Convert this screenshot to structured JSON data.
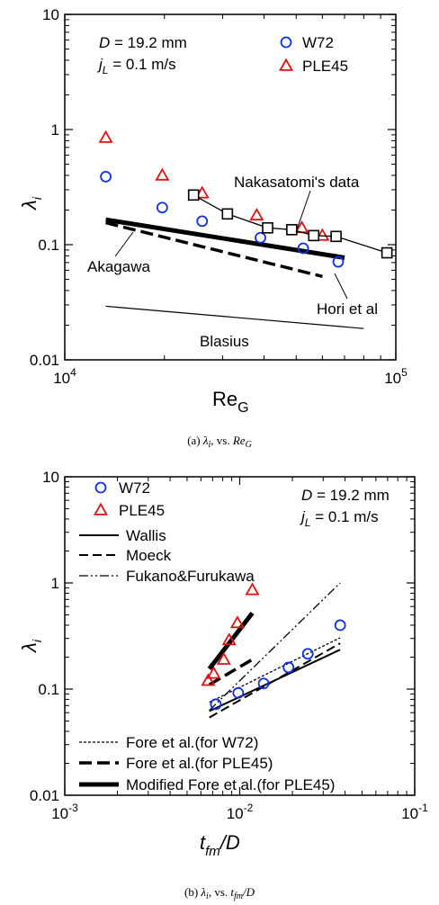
{
  "chart_data": [
    {
      "type": "scatter",
      "caption": {
        "prefix": "(a) ",
        "sym": "λ",
        "sub": "i",
        "mid": ", vs. ",
        "re": "Re",
        "resub": "G"
      },
      "xlabel": {
        "main": "Re",
        "sub": "G"
      },
      "ylabel": {
        "main": "λ",
        "sub": "i"
      },
      "x_scale": "log",
      "y_scale": "log",
      "xlim": [
        10000,
        100000
      ],
      "ylim": [
        0.01,
        10
      ],
      "x_ticks": [
        {
          "v": 10000,
          "base": "10",
          "exp": "4"
        },
        {
          "v": 100000,
          "base": "10",
          "exp": "5"
        }
      ],
      "y_ticks": [
        {
          "v": 0.01,
          "label": "0.01"
        },
        {
          "v": 0.1,
          "label": "0.1"
        },
        {
          "v": 1,
          "label": "1"
        },
        {
          "v": 10,
          "label": "10"
        }
      ],
      "conditions": [
        {
          "sym": "D",
          "text": " = 19.2 mm"
        },
        {
          "sym": "j",
          "sub": "L",
          "text": " = 0.1 m/s"
        }
      ],
      "legend": [
        {
          "label": "W72",
          "marker": "circle",
          "color": "#1030e8"
        },
        {
          "label": "PLE45",
          "marker": "triangle",
          "color": "#e01010"
        }
      ],
      "series": [
        {
          "name": "W72",
          "marker": "circle",
          "color": "#1030e8",
          "x": [
            13300,
            19700,
            26000,
            39000,
            52500,
            67000
          ],
          "y": [
            0.39,
            0.21,
            0.16,
            0.115,
            0.093,
            0.071
          ]
        },
        {
          "name": "PLE45",
          "marker": "triangle",
          "color": "#e01010",
          "x": [
            13300,
            19700,
            26000,
            38000,
            52000,
            60000
          ],
          "y": [
            0.85,
            0.4,
            0.28,
            0.18,
            0.14,
            0.12
          ]
        },
        {
          "marker": "square",
          "color": "#000000",
          "connect": true,
          "x": [
            24500,
            31000,
            41000,
            48500,
            56500,
            66000,
            94000
          ],
          "y": [
            0.27,
            0.185,
            0.14,
            0.135,
            0.12,
            0.118,
            0.085
          ]
        }
      ],
      "lines": [
        {
          "name": "Akagawa",
          "style": "thick",
          "x": [
            13300,
            70000
          ],
          "y": [
            0.165,
            0.077
          ]
        },
        {
          "name": "Hori et al",
          "style": "dashed-thick",
          "x": [
            13300,
            60000
          ],
          "y": [
            0.155,
            0.053
          ]
        },
        {
          "name": "Blasius",
          "style": "thin",
          "x": [
            13300,
            80000
          ],
          "y": [
            0.0292,
            0.0187
          ]
        }
      ],
      "annotations": [
        {
          "text": "Nakasatomi's data",
          "anchor": "nakasatomi"
        },
        {
          "text": "Akagawa",
          "anchor": "akagawa"
        },
        {
          "text": "Hori et al",
          "anchor": "hori"
        },
        {
          "text": "Blasius",
          "anchor": "blasius"
        }
      ]
    },
    {
      "type": "scatter",
      "caption": {
        "prefix": "(b) ",
        "sym": "λ",
        "sub": "i",
        "mid": ", vs. ",
        "t": "t",
        "tsub": "fm",
        "tail": "/D"
      },
      "xlabel": {
        "main": "t",
        "sub": "fm",
        "tail": "/D"
      },
      "ylabel": {
        "main": "λ",
        "sub": "i"
      },
      "x_scale": "log",
      "y_scale": "log",
      "xlim": [
        0.001,
        0.1
      ],
      "ylim": [
        0.01,
        10
      ],
      "x_ticks": [
        {
          "v": 0.001,
          "base": "10",
          "exp": "-3"
        },
        {
          "v": 0.01,
          "base": "10",
          "exp": "-2"
        },
        {
          "v": 0.1,
          "base": "10",
          "exp": "-1"
        }
      ],
      "y_ticks": [
        {
          "v": 0.01,
          "label": "0.01"
        },
        {
          "v": 0.1,
          "label": "0.1"
        },
        {
          "v": 1,
          "label": "1"
        },
        {
          "v": 10,
          "label": "10"
        }
      ],
      "conditions": [
        {
          "sym": "D",
          "text": " = 19.2 mm"
        },
        {
          "sym": "j",
          "sub": "L",
          "text": " = 0.1 m/s"
        }
      ],
      "legend": [
        {
          "label": "W72",
          "marker": "circle",
          "color": "#1030e8"
        },
        {
          "label": "PLE45",
          "marker": "triangle",
          "color": "#e01010"
        },
        {
          "label": "Wallis",
          "line": "solid"
        },
        {
          "label": "Moeck",
          "line": "dashed"
        },
        {
          "label": "Fukano&Furukawa",
          "line": "dashdotdot"
        },
        {
          "label": "Fore et al.(for W72)",
          "line": "dotted"
        },
        {
          "label": "Fore et al.(for PLE45)",
          "line": "dashed-thick"
        },
        {
          "label": "Modified Fore et al.(for PLE45)",
          "line": "thick"
        }
      ],
      "series": [
        {
          "name": "W72",
          "marker": "circle",
          "color": "#1030e8",
          "x": [
            0.0073,
            0.0098,
            0.0137,
            0.019,
            0.0245,
            0.0375
          ],
          "y": [
            0.072,
            0.092,
            0.113,
            0.16,
            0.215,
            0.4
          ]
        },
        {
          "name": "PLE45",
          "marker": "triangle",
          "color": "#e01010",
          "x": [
            0.0066,
            0.0071,
            0.0081,
            0.0087,
            0.0097,
            0.0118
          ],
          "y": [
            0.12,
            0.14,
            0.19,
            0.29,
            0.42,
            0.86
          ]
        }
      ],
      "lines": [
        {
          "name": "Wallis",
          "style": "solid",
          "x": [
            0.0067,
            0.0375
          ],
          "y": [
            0.062,
            0.235
          ]
        },
        {
          "name": "Moeck",
          "style": "dashed",
          "x": [
            0.0067,
            0.0375
          ],
          "y": [
            0.054,
            0.27
          ]
        },
        {
          "name": "Fukano&Furukawa",
          "style": "dashdotdot",
          "x": [
            0.0067,
            0.0375
          ],
          "y": [
            0.063,
            1.0
          ]
        },
        {
          "name": "Fore et al.(for W72)",
          "style": "dotted",
          "x": [
            0.0067,
            0.0375
          ],
          "y": [
            0.075,
            0.305
          ]
        },
        {
          "name": "Fore et al.(for PLE45)",
          "style": "dashed-thick",
          "x": [
            0.0067,
            0.0118
          ],
          "y": [
            0.11,
            0.19
          ]
        },
        {
          "name": "Modified Fore et al.(for PLE45)",
          "style": "thick",
          "x": [
            0.0067,
            0.0118
          ],
          "y": [
            0.155,
            0.52
          ]
        }
      ]
    }
  ]
}
